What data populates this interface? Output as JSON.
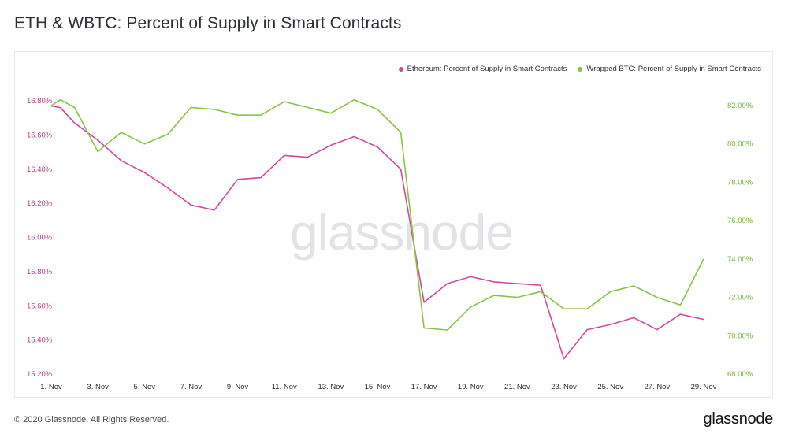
{
  "title": "ETH & WBTC: Percent of Supply in Smart Contracts",
  "footer": {
    "copyright": "© 2020 Glassnode. All Rights Reserved.",
    "logo": "glassnode"
  },
  "watermark": "glassnode",
  "colors": {
    "eth": "#cf4a9d",
    "wbtc": "#86c442",
    "axis_text_eth": "#b43c86",
    "axis_text_wbtc": "#73b62c"
  },
  "chart_data": {
    "type": "line",
    "x": [
      "1. Nov",
      "1. Nov+",
      "2. Nov",
      "3. Nov",
      "4. Nov",
      "5. Nov",
      "6. Nov",
      "7. Nov",
      "8. Nov",
      "9. Nov",
      "10. Nov",
      "11. Nov",
      "12. Nov",
      "13. Nov",
      "14. Nov",
      "15. Nov",
      "16. Nov",
      "17. Nov",
      "18. Nov",
      "19. Nov",
      "20. Nov",
      "21. Nov",
      "22. Nov",
      "23. Nov",
      "24. Nov",
      "25. Nov",
      "26. Nov",
      "27. Nov",
      "28. Nov",
      "29. Nov"
    ],
    "x_ticks": [
      "1. Nov",
      "3. Nov",
      "5. Nov",
      "7. Nov",
      "9. Nov",
      "11. Nov",
      "13. Nov",
      "15. Nov",
      "17. Nov",
      "19. Nov",
      "21. Nov",
      "23. Nov",
      "25. Nov",
      "27. Nov",
      "29. Nov"
    ],
    "x_day": [
      1,
      1.4,
      2,
      3,
      4,
      5,
      6,
      7,
      8,
      9,
      10,
      11,
      12,
      13,
      14,
      15,
      16,
      17,
      18,
      19,
      20,
      21,
      22,
      23,
      24,
      25,
      26,
      27,
      28,
      29
    ],
    "series": [
      {
        "name": "Ethereum: Percent of Supply in Smart Contracts",
        "axis": "left",
        "values": [
          16.77,
          16.76,
          16.67,
          16.57,
          16.45,
          16.38,
          16.29,
          16.19,
          16.16,
          16.34,
          16.35,
          16.48,
          16.47,
          16.54,
          16.59,
          16.53,
          16.4,
          15.62,
          15.73,
          15.77,
          15.74,
          15.73,
          15.72,
          15.29,
          15.46,
          15.49,
          15.53,
          15.46,
          15.55,
          15.52
        ]
      },
      {
        "name": "Wrapped BTC: Percent of Supply in Smart Contracts",
        "axis": "right",
        "values": [
          82.0,
          82.3,
          81.9,
          79.6,
          80.6,
          80.0,
          80.5,
          81.9,
          81.8,
          81.5,
          81.5,
          82.2,
          81.9,
          81.6,
          82.3,
          81.8,
          80.6,
          70.4,
          70.3,
          71.5,
          72.1,
          72.0,
          72.3,
          71.4,
          71.4,
          72.3,
          72.6,
          72.0,
          71.6,
          74.0
        ]
      }
    ],
    "y_left": {
      "min": 15.2,
      "max": 16.8,
      "ticks": [
        "15.20%",
        "15.40%",
        "15.60%",
        "15.80%",
        "16.00%",
        "16.20%",
        "16.40%",
        "16.60%",
        "16.80%"
      ]
    },
    "y_right": {
      "min": 68,
      "max": 82,
      "ticks": [
        "68.00%",
        "70.00%",
        "72.00%",
        "74.00%",
        "76.00%",
        "78.00%",
        "80.00%",
        "82.00%"
      ]
    },
    "legend": "top-right",
    "grid": false
  }
}
